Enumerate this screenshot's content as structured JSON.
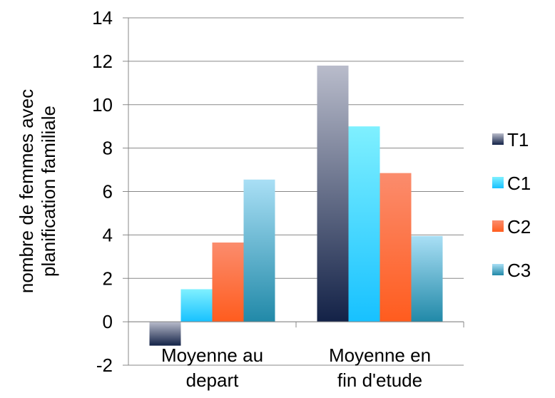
{
  "chart_data": {
    "type": "bar",
    "title": "",
    "ylabel_lines": [
      "nombre de femmes avec",
      "planification familiale"
    ],
    "categories": [
      [
        "Moyenne au",
        "depart"
      ],
      [
        "Moyenne en",
        "fin d'etude"
      ]
    ],
    "series": [
      {
        "name": "T1",
        "values": [
          -1.1,
          11.8
        ],
        "color_top": "#b9bccb",
        "color_bottom": "#132247"
      },
      {
        "name": "C1",
        "values": [
          1.5,
          9.0
        ],
        "color_top": "#7ff0ff",
        "color_bottom": "#17c1ff"
      },
      {
        "name": "C2",
        "values": [
          3.65,
          6.85
        ],
        "color_top": "#fb8c6d",
        "color_bottom": "#ff5c1e"
      },
      {
        "name": "C3",
        "values": [
          6.55,
          3.95
        ],
        "color_top": "#a9dff5",
        "color_bottom": "#2189a8"
      }
    ],
    "ylim": [
      -2,
      14
    ],
    "yticks": [
      -2,
      0,
      2,
      4,
      6,
      8,
      10,
      12,
      14
    ],
    "grid": true,
    "legend_position": "right",
    "colors": {
      "grid": "#888888",
      "axis": "#888888"
    }
  }
}
